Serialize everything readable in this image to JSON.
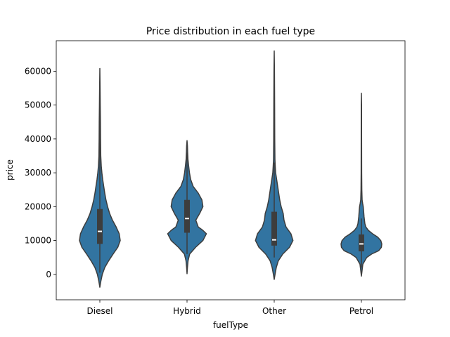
{
  "chart_data": {
    "type": "violin",
    "title": "Price distribution in each fuel type",
    "xlabel": "fuelType",
    "ylabel": "price",
    "categories": [
      "Diesel",
      "Hybrid",
      "Other",
      "Petrol"
    ],
    "ylim": [
      -7500,
      69000
    ],
    "yticks": [
      0,
      10000,
      20000,
      30000,
      40000,
      50000,
      60000
    ],
    "ytick_labels": [
      "0",
      "10000",
      "20000",
      "30000",
      "40000",
      "50000",
      "60000"
    ],
    "grid": false,
    "color": "#3274a1",
    "edge_color": "#3d3d3d",
    "violins": [
      {
        "category": "Diesel",
        "box": {
          "q1": 9000,
          "median": 12700,
          "q3": 19300,
          "whisker_low": 500,
          "whisker_high": 53500
        },
        "profile": [
          [
            -3800,
            0
          ],
          [
            -2000,
            0.05
          ],
          [
            0,
            0.12
          ],
          [
            2000,
            0.24
          ],
          [
            4000,
            0.43
          ],
          [
            6000,
            0.65
          ],
          [
            8000,
            0.88
          ],
          [
            10000,
            1.0
          ],
          [
            12000,
            0.95
          ],
          [
            14000,
            0.8
          ],
          [
            16000,
            0.62
          ],
          [
            18000,
            0.48
          ],
          [
            20000,
            0.38
          ],
          [
            22000,
            0.3
          ],
          [
            24000,
            0.24
          ],
          [
            26000,
            0.19
          ],
          [
            28000,
            0.14
          ],
          [
            30000,
            0.1
          ],
          [
            32000,
            0.07
          ],
          [
            35000,
            0.045
          ],
          [
            40000,
            0.035
          ],
          [
            45000,
            0.03
          ],
          [
            50000,
            0.02
          ],
          [
            55000,
            0.012
          ],
          [
            60800,
            0
          ]
        ]
      },
      {
        "category": "Hybrid",
        "box": {
          "q1": 12300,
          "median": 16500,
          "q3": 22000,
          "whisker_low": 6000,
          "whisker_high": 36000
        },
        "profile": [
          [
            200,
            0
          ],
          [
            2000,
            0.02
          ],
          [
            4000,
            0.05
          ],
          [
            6000,
            0.13
          ],
          [
            8000,
            0.42
          ],
          [
            10000,
            0.78
          ],
          [
            12000,
            0.95
          ],
          [
            13000,
            0.78
          ],
          [
            14000,
            0.55
          ],
          [
            16000,
            0.43
          ],
          [
            18000,
            0.62
          ],
          [
            20000,
            0.78
          ],
          [
            22000,
            0.73
          ],
          [
            24000,
            0.55
          ],
          [
            26000,
            0.3
          ],
          [
            28000,
            0.18
          ],
          [
            30000,
            0.12
          ],
          [
            32000,
            0.08
          ],
          [
            34000,
            0.045
          ],
          [
            36000,
            0.03
          ],
          [
            38000,
            0.02
          ],
          [
            39500,
            0
          ]
        ]
      },
      {
        "category": "Other",
        "box": {
          "q1": 8500,
          "median": 10200,
          "q3": 18500,
          "whisker_low": 5000,
          "whisker_high": 33000
        },
        "profile": [
          [
            -1500,
            0
          ],
          [
            0,
            0.04
          ],
          [
            2000,
            0.1
          ],
          [
            4000,
            0.2
          ],
          [
            6000,
            0.42
          ],
          [
            8000,
            0.75
          ],
          [
            10000,
            0.92
          ],
          [
            12000,
            0.82
          ],
          [
            14000,
            0.58
          ],
          [
            16000,
            0.48
          ],
          [
            18000,
            0.44
          ],
          [
            20000,
            0.34
          ],
          [
            22000,
            0.27
          ],
          [
            24000,
            0.22
          ],
          [
            26000,
            0.17
          ],
          [
            28000,
            0.12
          ],
          [
            30000,
            0.07
          ],
          [
            32000,
            0.05
          ],
          [
            34000,
            0.035
          ],
          [
            40000,
            0.025
          ],
          [
            50000,
            0.02
          ],
          [
            60000,
            0.012
          ],
          [
            66000,
            0
          ]
        ]
      },
      {
        "category": "Petrol",
        "box": {
          "q1": 6800,
          "median": 9000,
          "q3": 11800,
          "whisker_low": 2000,
          "whisker_high": 16500
        },
        "profile": [
          [
            -500,
            0
          ],
          [
            1000,
            0.03
          ],
          [
            3000,
            0.07
          ],
          [
            5000,
            0.26
          ],
          [
            6000,
            0.5
          ],
          [
            7000,
            0.85
          ],
          [
            8000,
            0.98
          ],
          [
            9000,
            1.0
          ],
          [
            10000,
            0.95
          ],
          [
            11000,
            0.8
          ],
          [
            12000,
            0.55
          ],
          [
            13000,
            0.34
          ],
          [
            14000,
            0.22
          ],
          [
            15000,
            0.17
          ],
          [
            17000,
            0.13
          ],
          [
            19000,
            0.105
          ],
          [
            20000,
            0.09
          ],
          [
            21000,
            0.06
          ],
          [
            22000,
            0.035
          ],
          [
            25000,
            0.02
          ],
          [
            30000,
            0.013
          ],
          [
            40000,
            0.01
          ],
          [
            50000,
            0.008
          ],
          [
            53500,
            0
          ]
        ]
      }
    ]
  }
}
